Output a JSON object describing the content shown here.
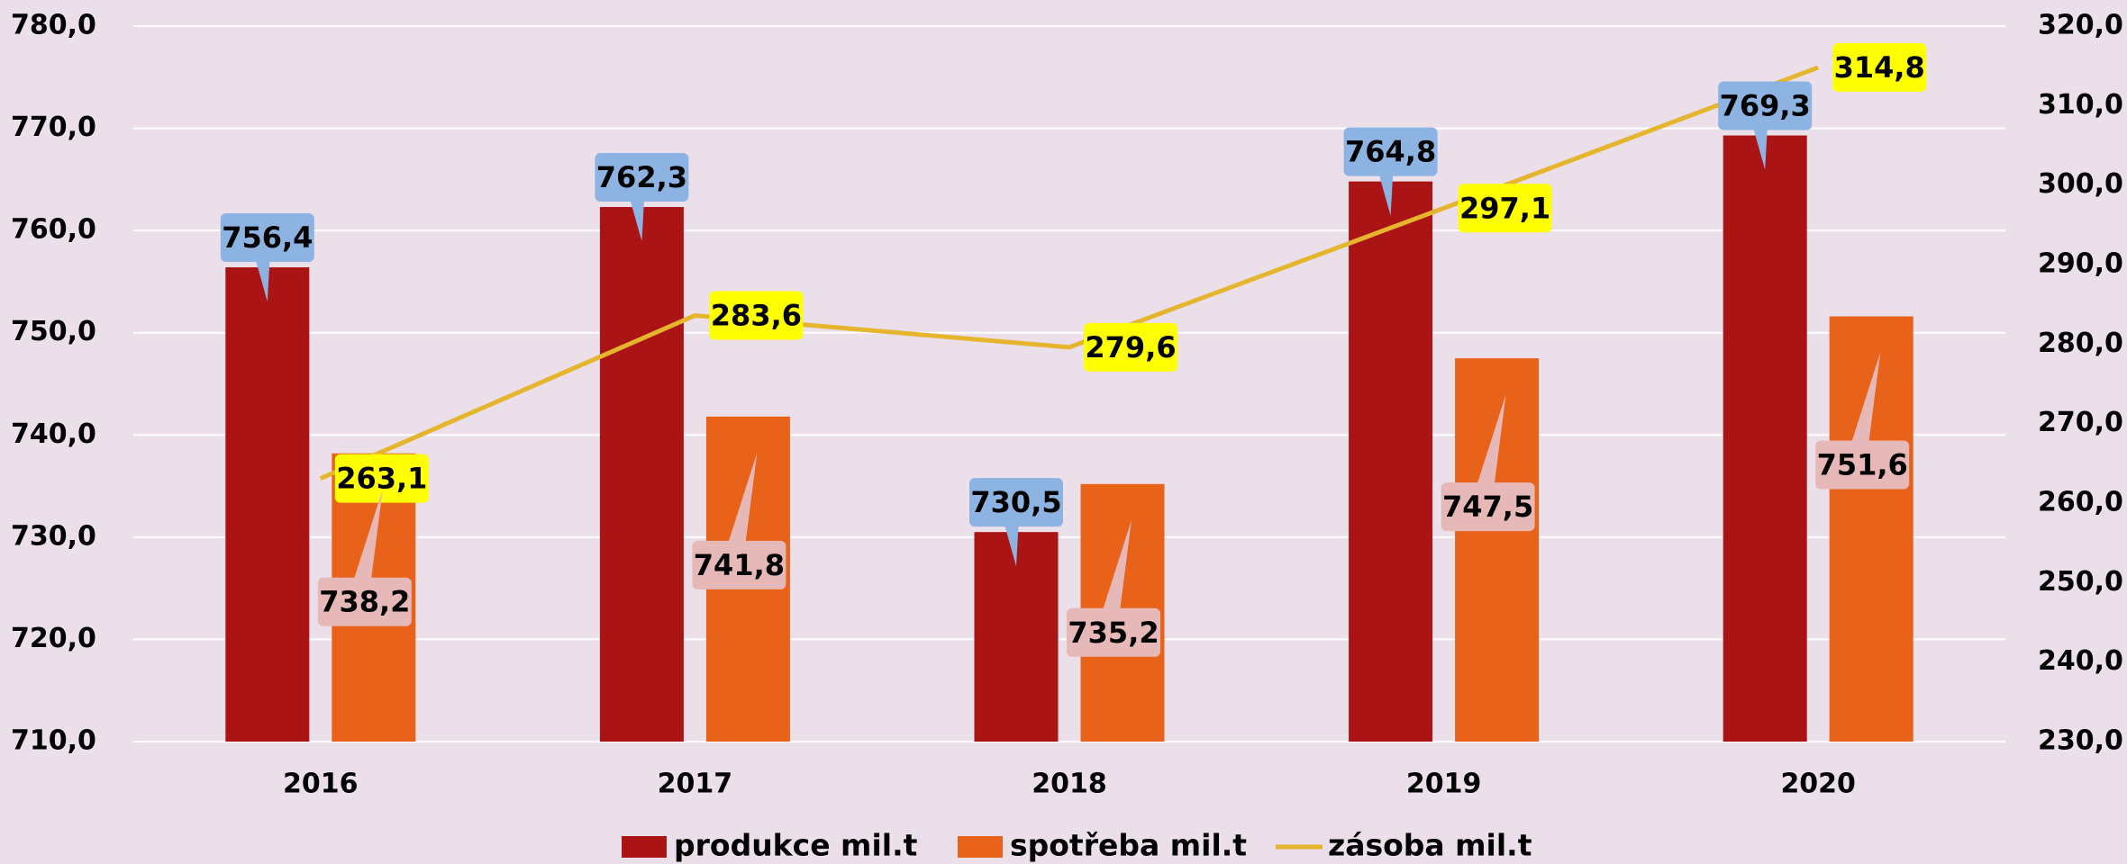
{
  "chart_data": {
    "type": "bar",
    "categories": [
      "2016",
      "2017",
      "2018",
      "2019",
      "2020"
    ],
    "series": [
      {
        "name": "produkce mil.t",
        "color": "#ab1414",
        "values": [
          756.4,
          762.3,
          730.5,
          764.8,
          769.3
        ],
        "value_labels": [
          "756,4",
          "762,3",
          "730,5",
          "764,8",
          "769,3"
        ]
      },
      {
        "name": "spotřeba mil.t",
        "color": "#e8621a",
        "values": [
          738.2,
          741.8,
          735.2,
          747.5,
          751.6
        ],
        "value_labels": [
          "738,2",
          "741,8",
          "735,2",
          "747,5",
          "751,6"
        ]
      },
      {
        "name": "zásoba mil.t",
        "type": "line",
        "axis": "y2",
        "color": "#e6b52e",
        "values": [
          263.1,
          283.6,
          279.6,
          297.1,
          314.8
        ],
        "value_labels": [
          "263,1",
          "283,6",
          "279,6",
          "297,1",
          "314,8"
        ]
      }
    ],
    "ylim": [
      710,
      780
    ],
    "yticks": [
      {
        "value": 710,
        "label": "710,0"
      },
      {
        "value": 720,
        "label": "720,0"
      },
      {
        "value": 730,
        "label": "730,0"
      },
      {
        "value": 740,
        "label": "740,0"
      },
      {
        "value": 750,
        "label": "750,0"
      },
      {
        "value": 760,
        "label": "760,0"
      },
      {
        "value": 770,
        "label": "770,0"
      },
      {
        "value": 780,
        "label": "780,0"
      }
    ],
    "y2lim": [
      230,
      320
    ],
    "y2ticks": [
      {
        "value": 230,
        "label": "230,0"
      },
      {
        "value": 240,
        "label": "240,0"
      },
      {
        "value": 250,
        "label": "250,0"
      },
      {
        "value": 260,
        "label": "260,0"
      },
      {
        "value": 270,
        "label": "270,0"
      },
      {
        "value": 280,
        "label": "280,0"
      },
      {
        "value": 290,
        "label": "290,0"
      },
      {
        "value": 300,
        "label": "300,0"
      },
      {
        "value": 310,
        "label": "310,0"
      },
      {
        "value": 320,
        "label": "320,0"
      }
    ],
    "grid": true,
    "legend": "bottom"
  }
}
